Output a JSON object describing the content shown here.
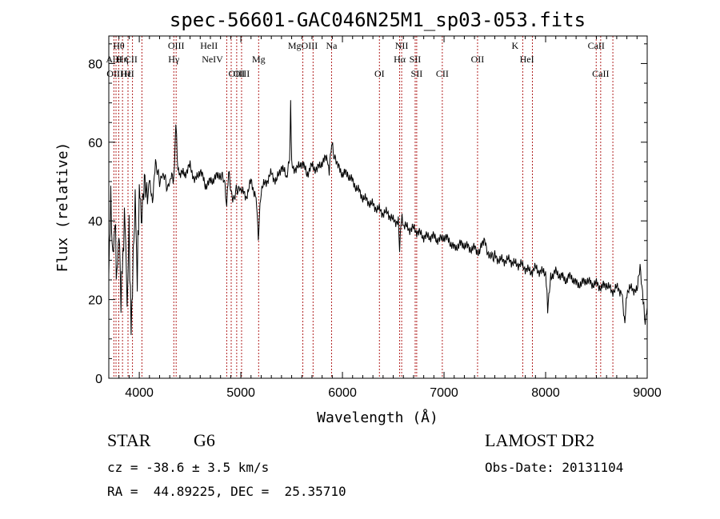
{
  "chart_data": {
    "type": "line",
    "title": "spec-56601-GAC046N25M1_sp03-053.fits",
    "xlabel": "Wavelength (Å)",
    "ylabel": "Flux (relative)",
    "xlim": [
      3700,
      9000
    ],
    "ylim": [
      0,
      87
    ],
    "x_ticks": [
      4000,
      5000,
      6000,
      7000,
      8000,
      9000
    ],
    "y_ticks": [
      0,
      20,
      40,
      60,
      80
    ],
    "grid": false,
    "legend": "none",
    "line_color": "#000000",
    "marker_color": "#b22222",
    "series": [
      {
        "x": [
          3700,
          3720,
          3740,
          3760,
          3780,
          3800,
          3820,
          3840,
          3860,
          3880,
          3900,
          3920,
          3940,
          3960,
          3980,
          4000,
          4020,
          4050,
          4080,
          4100,
          4130,
          4160,
          4200,
          4240,
          4280,
          4320,
          4340,
          4360,
          4380,
          4400,
          4450,
          4500,
          4550,
          4600,
          4650,
          4700,
          4750,
          4800,
          4840,
          4861,
          4880,
          4920,
          4960,
          5000,
          5050,
          5100,
          5150,
          5172,
          5200,
          5250,
          5300,
          5350,
          5400,
          5450,
          5480,
          5490,
          5500,
          5550,
          5600,
          5650,
          5700,
          5750,
          5800,
          5850,
          5870,
          5893,
          5920,
          5950,
          6000,
          6050,
          6100,
          6150,
          6200,
          6250,
          6300,
          6350,
          6400,
          6450,
          6500,
          6550,
          6563,
          6580,
          6600,
          6650,
          6700,
          6750,
          6800,
          6850,
          6900,
          6950,
          7000,
          7050,
          7100,
          7150,
          7200,
          7250,
          7300,
          7350,
          7400,
          7430,
          7460,
          7500,
          7550,
          7600,
          7650,
          7700,
          7750,
          7800,
          7850,
          7900,
          7950,
          8000,
          8020,
          8050,
          8100,
          8150,
          8200,
          8250,
          8300,
          8350,
          8400,
          8450,
          8500,
          8550,
          8600,
          8650,
          8700,
          8750,
          8780,
          8800,
          8850,
          8900,
          8930,
          8960,
          8980,
          9000
        ],
        "y": [
          28,
          45,
          30,
          40,
          25,
          38,
          20,
          32,
          42,
          18,
          38,
          12,
          30,
          46,
          25,
          48,
          42,
          52,
          46,
          50,
          44,
          55,
          50,
          52,
          48,
          52,
          50,
          65,
          53,
          52,
          52,
          54,
          50,
          53,
          49,
          50,
          51,
          52,
          50,
          44,
          52,
          45,
          48,
          48,
          46,
          50,
          46,
          36,
          48,
          50,
          52,
          50,
          54,
          51,
          56,
          70,
          54,
          53,
          55,
          52,
          54,
          53,
          55,
          56,
          52,
          60,
          56,
          54,
          52,
          52,
          50,
          48,
          46,
          45,
          44,
          43,
          42,
          42,
          40,
          40,
          32,
          41,
          39,
          38,
          38,
          37,
          36,
          36,
          36,
          35,
          36,
          35,
          33,
          34,
          34,
          33,
          33,
          32,
          36,
          32,
          31,
          31,
          30,
          30,
          30,
          29,
          29,
          28,
          27,
          28,
          27,
          27,
          18,
          26,
          27,
          26,
          25,
          26,
          24,
          24,
          25,
          24,
          24,
          23,
          24,
          22,
          23,
          22,
          14,
          22,
          23,
          22,
          28,
          20,
          14,
          18
        ]
      }
    ],
    "annotations": [
      {
        "label": "Hθ",
        "x": 3798,
        "row": 0
      },
      {
        "label": "AlII",
        "x": 3750,
        "row": 1
      },
      {
        "label": "Hη",
        "x": 3835,
        "row": 1
      },
      {
        "label": "CII",
        "x": 3920,
        "row": 1
      },
      {
        "label": "OIII",
        "x": 3760,
        "row": 2
      },
      {
        "label": "Hε",
        "x": 3870,
        "row": 2
      },
      {
        "label": "HI",
        "x": 3900,
        "row": 2
      },
      {
        "label": "OIII",
        "x": 4363,
        "row": 0
      },
      {
        "label": "Hγ",
        "x": 4340,
        "row": 1
      },
      {
        "label": "HeII",
        "x": 4686,
        "row": 0
      },
      {
        "label": "NeIV",
        "x": 4720,
        "row": 1
      },
      {
        "label": "OIII",
        "x": 4959,
        "row": 2
      },
      {
        "label": "OIII",
        "x": 5007,
        "row": 2
      },
      {
        "label": "Mg",
        "x": 5175,
        "row": 1
      },
      {
        "label": "MgOIII",
        "x": 5610,
        "row": 0
      },
      {
        "label": "Na",
        "x": 5893,
        "row": 0
      },
      {
        "label": "OI",
        "x": 6364,
        "row": 2
      },
      {
        "label": "NII",
        "x": 6583,
        "row": 0
      },
      {
        "label": "Hα",
        "x": 6563,
        "row": 1
      },
      {
        "label": "SII",
        "x": 6716,
        "row": 1
      },
      {
        "label": "SII",
        "x": 6731,
        "row": 2
      },
      {
        "label": "CII",
        "x": 6983,
        "row": 2
      },
      {
        "label": "OII",
        "x": 7330,
        "row": 1
      },
      {
        "label": "HeI",
        "x": 7816,
        "row": 1
      },
      {
        "label": "K",
        "x": 7699,
        "row": 0
      },
      {
        "label": "CaII",
        "x": 8498,
        "row": 0
      },
      {
        "label": "CaII",
        "x": 8542,
        "row": 2
      }
    ],
    "marker_lines": [
      3750,
      3771,
      3798,
      3835,
      3889,
      3933,
      4026,
      4340,
      4363,
      4861,
      4905,
      4959,
      5007,
      5175,
      5610,
      5711,
      5893,
      6364,
      6563,
      6583,
      6716,
      6731,
      6983,
      7330,
      7775,
      7870,
      8498,
      8542,
      8662
    ]
  },
  "info": {
    "class": "STAR",
    "subclass": "G6",
    "survey": "LAMOST DR2",
    "cz": "cz = -38.6 ± 3.5 km/s",
    "obs_date": "Obs-Date: 20131104",
    "coords": "RA =  44.89225, DEC =  25.35710"
  }
}
